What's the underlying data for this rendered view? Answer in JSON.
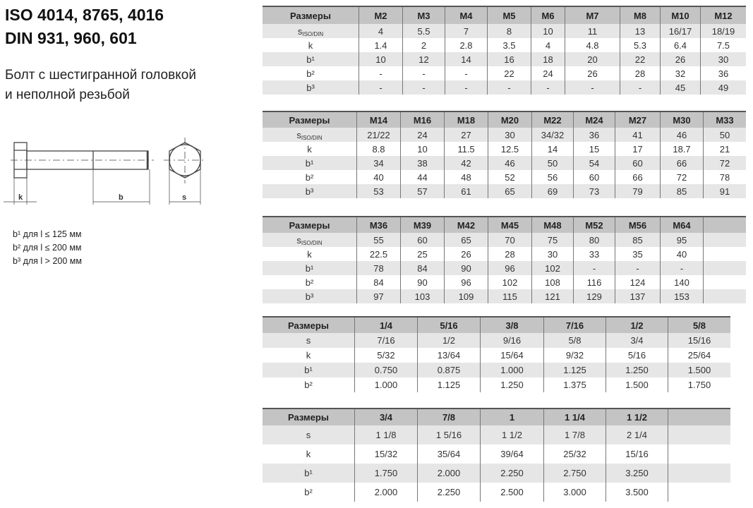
{
  "heading": {
    "line1": "ISO 4014, 8765, 4016",
    "line2": "DIN 931, 960, 601",
    "subtitle1": "Болт с шестигранной головкой",
    "subtitle2": "и неполной резьбой"
  },
  "drawing": {
    "label_k": "k",
    "label_b": "b",
    "label_s": "s"
  },
  "notes": [
    "b¹ для l ≤ 125 мм",
    "b² для l ≤ 200 мм",
    "b³ для l > 200 мм"
  ],
  "tables": [
    {
      "headers": [
        "Размеры",
        "M2",
        "M3",
        "M4",
        "M5",
        "M6",
        "M7",
        "M8",
        "M10",
        "M12"
      ],
      "rows": [
        {
          "label": "s",
          "sub": "ISO/DIN",
          "values": [
            "4",
            "5.5",
            "7",
            "8",
            "10",
            "11",
            "13",
            "16/17",
            "18/19"
          ]
        },
        {
          "label": "k",
          "values": [
            "1.4",
            "2",
            "2.8",
            "3.5",
            "4",
            "4.8",
            "5.3",
            "6.4",
            "7.5"
          ]
        },
        {
          "label": "b¹",
          "values": [
            "10",
            "12",
            "14",
            "16",
            "18",
            "20",
            "22",
            "26",
            "30"
          ]
        },
        {
          "label": "b²",
          "values": [
            "-",
            "-",
            "-",
            "22",
            "24",
            "26",
            "28",
            "32",
            "36"
          ]
        },
        {
          "label": "b³",
          "values": [
            "-",
            "-",
            "-",
            "-",
            "-",
            "-",
            "-",
            "45",
            "49"
          ]
        }
      ]
    },
    {
      "headers": [
        "Размеры",
        "M14",
        "M16",
        "M18",
        "M20",
        "M22",
        "M24",
        "M27",
        "M30",
        "M33"
      ],
      "rows": [
        {
          "label": "s",
          "sub": "ISO/DIN",
          "values": [
            "21/22",
            "24",
            "27",
            "30",
            "34/32",
            "36",
            "41",
            "46",
            "50"
          ]
        },
        {
          "label": "k",
          "values": [
            "8.8",
            "10",
            "11.5",
            "12.5",
            "14",
            "15",
            "17",
            "18.7",
            "21"
          ]
        },
        {
          "label": "b¹",
          "values": [
            "34",
            "38",
            "42",
            "46",
            "50",
            "54",
            "60",
            "66",
            "72"
          ]
        },
        {
          "label": "b²",
          "values": [
            "40",
            "44",
            "48",
            "52",
            "56",
            "60",
            "66",
            "72",
            "78"
          ]
        },
        {
          "label": "b³",
          "values": [
            "53",
            "57",
            "61",
            "65",
            "69",
            "73",
            "79",
            "85",
            "91"
          ]
        }
      ]
    },
    {
      "headers": [
        "Размеры",
        "M36",
        "M39",
        "M42",
        "M45",
        "M48",
        "M52",
        "M56",
        "M64",
        ""
      ],
      "rows": [
        {
          "label": "s",
          "sub": "ISO/DIN",
          "values": [
            "55",
            "60",
            "65",
            "70",
            "75",
            "80",
            "85",
            "95",
            ""
          ]
        },
        {
          "label": "k",
          "values": [
            "22.5",
            "25",
            "26",
            "28",
            "30",
            "33",
            "35",
            "40",
            ""
          ]
        },
        {
          "label": "b¹",
          "values": [
            "78",
            "84",
            "90",
            "96",
            "102",
            "-",
            "-",
            "-",
            ""
          ]
        },
        {
          "label": "b²",
          "values": [
            "84",
            "90",
            "96",
            "102",
            "108",
            "116",
            "124",
            "140",
            ""
          ]
        },
        {
          "label": "b³",
          "values": [
            "97",
            "103",
            "109",
            "115",
            "121",
            "129",
            "137",
            "153",
            ""
          ]
        }
      ]
    },
    {
      "headers": [
        "Размеры",
        "1/4",
        "5/16",
        "3/8",
        "7/16",
        "1/2",
        "5/8"
      ],
      "rows": [
        {
          "label": "s",
          "values": [
            "7/16",
            "1/2",
            "9/16",
            "5/8",
            "3/4",
            "15/16"
          ]
        },
        {
          "label": "k",
          "values": [
            "5/32",
            "13/64",
            "15/64",
            "9/32",
            "5/16",
            "25/64"
          ]
        },
        {
          "label": "b¹",
          "values": [
            "0.750",
            "0.875",
            "1.000",
            "1.125",
            "1.250",
            "1.500"
          ]
        },
        {
          "label": "b²",
          "values": [
            "1.000",
            "1.125",
            "1.250",
            "1.375",
            "1.500",
            "1.750"
          ]
        }
      ]
    },
    {
      "headers": [
        "Размеры",
        "3/4",
        "7/8",
        "1",
        "1 1/4",
        "1 1/2",
        ""
      ],
      "rows": [
        {
          "label": "s",
          "values": [
            "1 1/8",
            "1 5/16",
            "1 1/2",
            "1 7/8",
            "2 1/4",
            ""
          ]
        },
        {
          "label": "k",
          "values": [
            "15/32",
            "35/64",
            "39/64",
            "25/32",
            "15/16",
            ""
          ]
        },
        {
          "label": "b¹",
          "values": [
            "1.750",
            "2.000",
            "2.250",
            "2.750",
            "3.250",
            ""
          ]
        },
        {
          "label": "b²",
          "values": [
            "2.000",
            "2.250",
            "2.500",
            "3.000",
            "3.500",
            ""
          ]
        }
      ]
    }
  ]
}
